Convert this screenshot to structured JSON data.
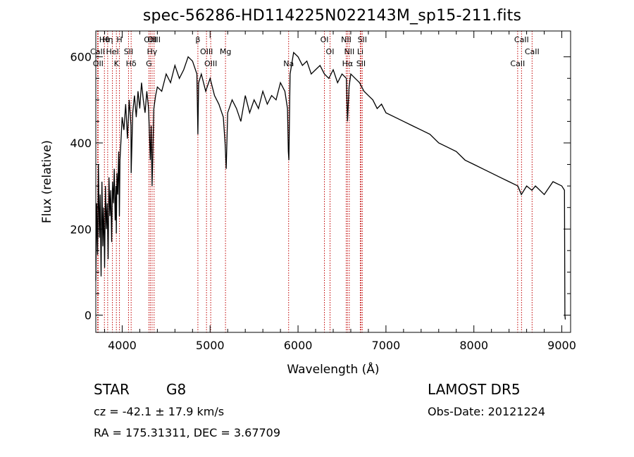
{
  "title": "spec-56286-HD114225N022143M_sp15-211.fits",
  "footer": {
    "object_class": "STAR",
    "subclass": "G8",
    "survey": "LAMOST DR5",
    "redshift_line": "cz = -42.1 ± 17.9 km/s",
    "obs_date_line": "Obs-Date: 20121224",
    "coords_line": "RA = 175.31311, DEC =   3.67709"
  },
  "chart_data": {
    "type": "line",
    "title": "spec-56286-HD114225N022143M_sp15-211.fits",
    "xlabel": "Wavelength (Å)",
    "ylabel": "Flux (relative)",
    "xlim": [
      3700,
      9100
    ],
    "ylim": [
      -40,
      660
    ],
    "xticks": [
      4000,
      5000,
      6000,
      7000,
      8000,
      9000
    ],
    "yticks": [
      0,
      200,
      400,
      600
    ],
    "grid": false,
    "line_color": "#000000",
    "marker_color": "#c00000",
    "series": [
      {
        "x": [
          3700,
          3710,
          3720,
          3730,
          3740,
          3750,
          3760,
          3770,
          3780,
          3790,
          3800,
          3810,
          3820,
          3830,
          3840,
          3850,
          3860,
          3870,
          3880,
          3890,
          3900,
          3910,
          3920,
          3930,
          3933,
          3940,
          3950,
          3960,
          3968,
          3975,
          3990,
          4000,
          4020,
          4040,
          4060,
          4080,
          4100,
          4102,
          4120,
          4140,
          4160,
          4180,
          4200,
          4220,
          4240,
          4260,
          4280,
          4300,
          4320,
          4330,
          4340,
          4360,
          4380,
          4400,
          4450,
          4500,
          4550,
          4600,
          4650,
          4700,
          4750,
          4800,
          4850,
          4861,
          4870,
          4900,
          4950,
          5000,
          5050,
          5100,
          5150,
          5170,
          5183,
          5200,
          5250,
          5300,
          5350,
          5400,
          5450,
          5500,
          5550,
          5600,
          5650,
          5700,
          5750,
          5800,
          5850,
          5880,
          5890,
          5896,
          5910,
          5950,
          6000,
          6050,
          6100,
          6150,
          6200,
          6250,
          6300,
          6350,
          6400,
          6450,
          6500,
          6550,
          6563,
          6580,
          6600,
          6650,
          6700,
          6750,
          6800,
          6850,
          6900,
          6950,
          7000,
          7100,
          7200,
          7300,
          7400,
          7500,
          7600,
          7700,
          7800,
          7900,
          8000,
          8100,
          8200,
          8300,
          8400,
          8500,
          8540,
          8600,
          8660,
          8700,
          8800,
          8900,
          9000,
          9030,
          9035,
          9040
        ],
        "y": [
          80,
          260,
          140,
          350,
          180,
          280,
          90,
          310,
          160,
          250,
          110,
          300,
          200,
          260,
          130,
          320,
          230,
          290,
          170,
          310,
          260,
          340,
          220,
          300,
          190,
          330,
          280,
          380,
          230,
          360,
          420,
          460,
          430,
          490,
          410,
          500,
          440,
          330,
          470,
          510,
          460,
          520,
          480,
          540,
          500,
          470,
          520,
          480,
          360,
          440,
          300,
          480,
          510,
          530,
          520,
          560,
          540,
          580,
          550,
          570,
          600,
          590,
          560,
          420,
          540,
          560,
          520,
          550,
          510,
          490,
          460,
          400,
          340,
          470,
          500,
          480,
          450,
          510,
          470,
          500,
          480,
          520,
          490,
          510,
          500,
          540,
          520,
          480,
          380,
          360,
          560,
          610,
          600,
          580,
          590,
          560,
          570,
          580,
          560,
          550,
          570,
          540,
          560,
          550,
          450,
          530,
          560,
          550,
          540,
          520,
          510,
          500,
          480,
          490,
          470,
          460,
          450,
          440,
          430,
          420,
          400,
          390,
          380,
          360,
          350,
          340,
          330,
          320,
          310,
          300,
          280,
          300,
          290,
          300,
          280,
          310,
          300,
          290,
          0,
          -10
        ]
      }
    ],
    "line_markers": [
      {
        "label": "Hθ",
        "x": 3798
      },
      {
        "label": "CaII",
        "x": 3720
      },
      {
        "label": "OII",
        "x": 3727
      },
      {
        "label": "Hη",
        "x": 3835
      },
      {
        "label": "HeI",
        "x": 3889
      },
      {
        "label": "K",
        "x": 3934
      },
      {
        "label": "H",
        "x": 3969
      },
      {
        "label": "SII",
        "x": 4072
      },
      {
        "label": "Hδ",
        "x": 4102
      },
      {
        "label": "OIII",
        "x": 4320
      },
      {
        "label": "Hγ",
        "x": 4340
      },
      {
        "label": "G",
        "x": 4304
      },
      {
        "label": "OIII",
        "x": 4363
      },
      {
        "label": "OIII",
        "x": 4959
      },
      {
        "label": "OIII",
        "x": 5007
      },
      {
        "label": "β",
        "x": 4861
      },
      {
        "label": "Mg",
        "x": 5175
      },
      {
        "label": "Na",
        "x": 5893
      },
      {
        "label": "OI",
        "x": 6300
      },
      {
        "label": "OI",
        "x": 6364
      },
      {
        "label": "Hα",
        "x": 6563
      },
      {
        "label": "NII",
        "x": 6548
      },
      {
        "label": "NII",
        "x": 6583
      },
      {
        "label": "SII",
        "x": 6716
      },
      {
        "label": "SII",
        "x": 6731
      },
      {
        "label": "Li",
        "x": 6708
      },
      {
        "label": "CaII",
        "x": 8498
      },
      {
        "label": "CaII",
        "x": 8542
      },
      {
        "label": "CaII",
        "x": 8662
      }
    ]
  }
}
